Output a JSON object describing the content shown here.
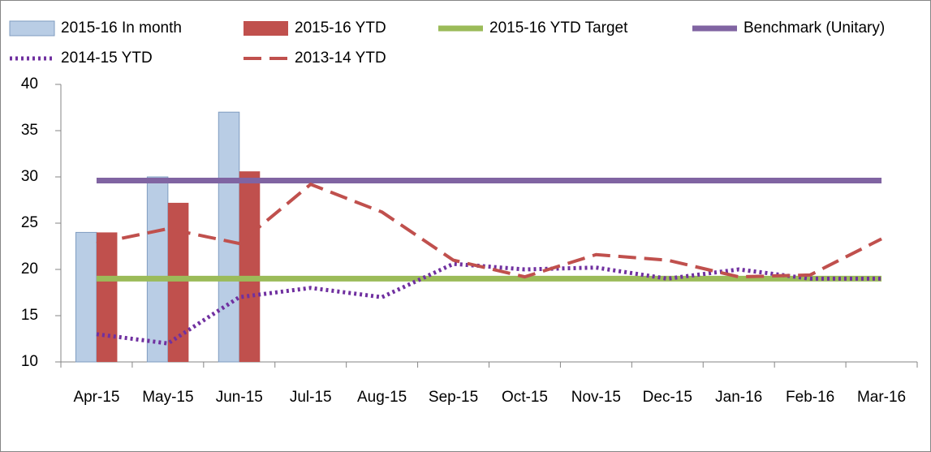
{
  "chart_data": {
    "type": "bar",
    "categories": [
      "Apr-15",
      "May-15",
      "Jun-15",
      "Jul-15",
      "Aug-15",
      "Sep-15",
      "Oct-15",
      "Nov-15",
      "Dec-15",
      "Jan-16",
      "Feb-16",
      "Mar-16"
    ],
    "series": [
      {
        "name": "2015-16 In month",
        "type": "bar",
        "color": "#b9cde5",
        "values": [
          24,
          30,
          37,
          null,
          null,
          null,
          null,
          null,
          null,
          null,
          null,
          null
        ]
      },
      {
        "name": "2015-16 YTD",
        "type": "bar",
        "color": "#c0504d",
        "values": [
          24,
          27.2,
          30.6,
          null,
          null,
          null,
          null,
          null,
          null,
          null,
          null,
          null
        ]
      },
      {
        "name": "2015-16 YTD Target",
        "type": "line",
        "dash": "solid",
        "color": "#9bbb59",
        "values": [
          19,
          19,
          19,
          19,
          19,
          19,
          19,
          19,
          19,
          19,
          19,
          19
        ]
      },
      {
        "name": "Benchmark (Unitary)",
        "type": "line",
        "dash": "solid",
        "color": "#8064a2",
        "values": [
          29.6,
          29.6,
          29.6,
          29.6,
          29.6,
          29.6,
          29.6,
          29.6,
          29.6,
          29.6,
          29.6,
          29.6
        ]
      },
      {
        "name": "2014-15 YTD",
        "type": "line",
        "dash": "dotted",
        "color": "#7030a0",
        "values": [
          13,
          12,
          17,
          18,
          17,
          20.6,
          20,
          20.2,
          19,
          20,
          19,
          19
        ]
      },
      {
        "name": "2013-14 YTD",
        "type": "line",
        "dash": "dashed",
        "color": "#c0504d",
        "values": [
          22.8,
          24.4,
          22.8,
          29.2,
          26.2,
          21,
          19.2,
          21.6,
          21,
          19.2,
          19.4,
          23.3
        ]
      }
    ],
    "ylim": [
      10,
      40
    ],
    "yticks": [
      10,
      15,
      20,
      25,
      30,
      35,
      40
    ],
    "grid": false
  }
}
